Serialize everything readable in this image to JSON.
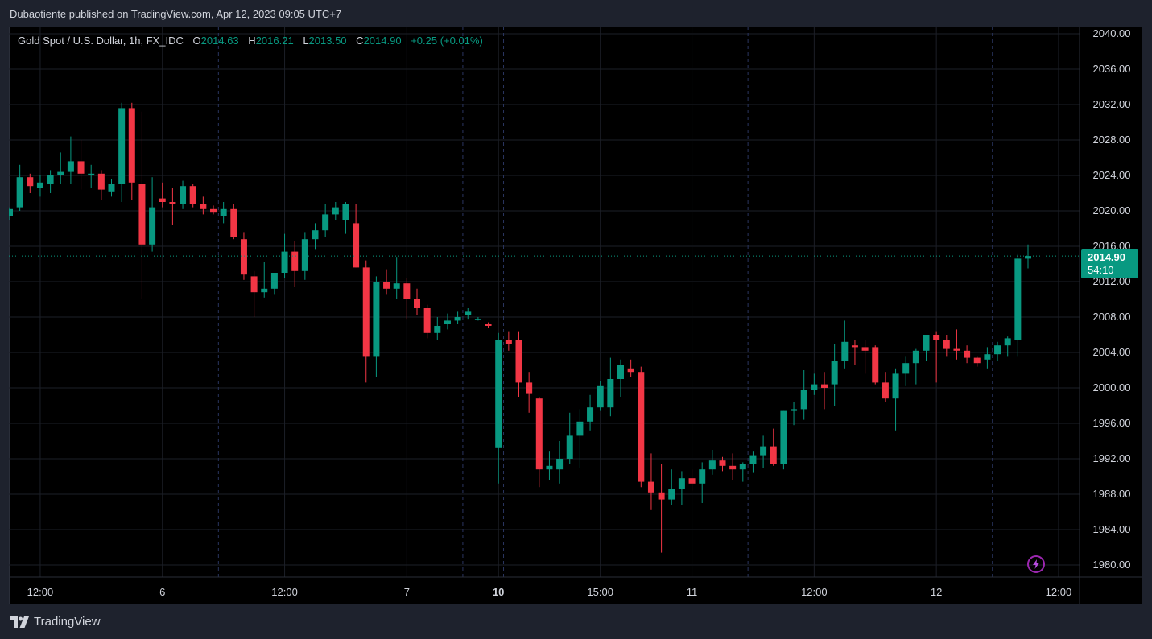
{
  "header": {
    "published": "Dubaotiente published on TradingView.com, Apr 12, 2023 09:05 UTC+7"
  },
  "legend": {
    "symbol": "Gold Spot / U.S. Dollar, 1h, FX_IDC",
    "o_label": "O",
    "o_value": "2014.63",
    "h_label": "H",
    "h_value": "2016.21",
    "l_label": "L",
    "l_value": "2013.50",
    "c_label": "C",
    "c_value": "2014.90",
    "change": "+0.25 (+0.01%)"
  },
  "price_tag": {
    "price": "2014.90",
    "countdown": "54:10"
  },
  "footer": {
    "brand": "TradingView"
  },
  "colors": {
    "up": "#089981",
    "down": "#f23645",
    "background": "#000000",
    "panel": "#1e222d",
    "grid": "#1c1f27",
    "accent": "#9c27b0"
  },
  "icons": [
    "tradingview-logo-icon",
    "lightning-bolt-icon"
  ],
  "chart_data": {
    "type": "candlestick",
    "title": "Gold Spot / U.S. Dollar, 1h, FX_IDC",
    "ylim": [
      1978,
      2042
    ],
    "y_ticks": [
      "2040.00",
      "2036.00",
      "2032.00",
      "2028.00",
      "2024.00",
      "2020.00",
      "2016.00",
      "2012.00",
      "2008.00",
      "2004.00",
      "2000.00",
      "1996.00",
      "1992.00",
      "1988.00",
      "1984.00",
      "1980.00"
    ],
    "x_ticks": [
      {
        "label": "12:00",
        "bar": 3,
        "bold": false
      },
      {
        "label": "6",
        "bar": 15,
        "bold": false
      },
      {
        "label": "12:00",
        "bar": 27,
        "bold": false
      },
      {
        "label": "7",
        "bar": 39,
        "bold": false
      },
      {
        "label": "10",
        "bar": 48,
        "bold": true
      },
      {
        "label": "15:00",
        "bar": 58,
        "bold": false
      },
      {
        "label": "11",
        "bar": 67,
        "bold": false
      },
      {
        "label": "12:00",
        "bar": 79,
        "bold": false
      },
      {
        "label": "12",
        "bar": 91,
        "bold": false
      },
      {
        "label": "12:00",
        "bar": 103,
        "bold": false
      }
    ],
    "session_breaks": [
      20.5,
      44.5,
      48.5,
      72.5,
      96.5
    ],
    "last_price": 2014.9,
    "candles": [
      [
        2019.4,
        2020.4,
        2019.0,
        2020.2
      ],
      [
        2020.4,
        2025.2,
        2020.0,
        2023.8
      ],
      [
        2023.8,
        2024.2,
        2022.0,
        2022.8
      ],
      [
        2022.6,
        2024.0,
        2021.6,
        2023.2
      ],
      [
        2023.0,
        2024.6,
        2022.0,
        2024.0
      ],
      [
        2024.0,
        2026.6,
        2023.0,
        2024.4
      ],
      [
        2024.4,
        2028.4,
        2023.0,
        2025.6
      ],
      [
        2025.6,
        2028.0,
        2022.4,
        2024.2
      ],
      [
        2024.0,
        2025.2,
        2022.6,
        2024.2
      ],
      [
        2024.2,
        2024.6,
        2021.2,
        2022.4
      ],
      [
        2022.2,
        2023.6,
        2021.6,
        2023.0
      ],
      [
        2023.0,
        2032.2,
        2021.0,
        2031.6
      ],
      [
        2031.6,
        2032.2,
        2021.2,
        2023.2
      ],
      [
        2023.0,
        2031.2,
        2010.0,
        2016.2
      ],
      [
        2016.2,
        2023.8,
        2015.4,
        2020.4
      ],
      [
        2021.4,
        2023.2,
        2020.4,
        2021.0
      ],
      [
        2021.0,
        2022.6,
        2018.4,
        2020.8
      ],
      [
        2020.8,
        2023.4,
        2020.2,
        2022.8
      ],
      [
        2022.8,
        2023.0,
        2020.4,
        2020.8
      ],
      [
        2020.8,
        2021.6,
        2019.6,
        2020.2
      ],
      [
        2020.2,
        2020.6,
        2019.6,
        2019.8
      ],
      [
        2019.4,
        2021.0,
        2018.6,
        2020.2
      ],
      [
        2020.2,
        2020.8,
        2016.8,
        2017.0
      ],
      [
        2016.8,
        2017.6,
        2012.2,
        2012.8
      ],
      [
        2012.6,
        2013.2,
        2008.0,
        2010.8
      ],
      [
        2010.8,
        2014.2,
        2010.2,
        2011.2
      ],
      [
        2011.2,
        2013.0,
        2010.6,
        2013.0
      ],
      [
        2013.0,
        2017.4,
        2012.4,
        2015.4
      ],
      [
        2015.4,
        2016.6,
        2011.4,
        2013.2
      ],
      [
        2013.2,
        2017.6,
        2012.2,
        2016.8
      ],
      [
        2016.8,
        2018.6,
        2015.6,
        2017.8
      ],
      [
        2017.8,
        2020.8,
        2017.0,
        2019.6
      ],
      [
        2019.6,
        2021.0,
        2019.0,
        2020.4
      ],
      [
        2019.0,
        2021.0,
        2017.4,
        2020.8
      ],
      [
        2018.6,
        2020.8,
        2013.6,
        2013.6
      ],
      [
        2013.6,
        2014.4,
        2000.6,
        2003.6
      ],
      [
        2003.6,
        2012.6,
        2001.2,
        2012.0
      ],
      [
        2012.0,
        2013.4,
        2010.6,
        2011.2
      ],
      [
        2011.2,
        2014.8,
        2010.0,
        2011.8
      ],
      [
        2011.8,
        2012.4,
        2007.8,
        2010.0
      ],
      [
        2010.0,
        2011.2,
        2008.2,
        2009.0
      ],
      [
        2009.0,
        2009.4,
        2005.6,
        2006.2
      ],
      [
        2006.2,
        2008.0,
        2005.4,
        2007.0
      ],
      [
        2007.2,
        2008.4,
        2006.6,
        2007.6
      ],
      [
        2007.6,
        2008.6,
        2007.2,
        2008.0
      ],
      [
        2008.2,
        2009.0,
        2007.8,
        2008.6
      ],
      [
        2007.8,
        2008.0,
        2007.6,
        2007.8
      ],
      [
        2007.2,
        2007.4,
        2006.8,
        2007.0
      ],
      [
        1993.2,
        2006.2,
        1989.2,
        2005.4
      ],
      [
        2005.4,
        2006.4,
        2004.2,
        2005.0
      ],
      [
        2005.4,
        2006.4,
        1999.0,
        2000.6
      ],
      [
        2000.6,
        2001.8,
        1997.2,
        1999.4
      ],
      [
        1998.8,
        1999.0,
        1988.8,
        1990.8
      ],
      [
        1990.8,
        1992.8,
        1989.6,
        1991.2
      ],
      [
        1990.8,
        1994.0,
        1989.2,
        1992.0
      ],
      [
        1992.0,
        1997.2,
        1991.4,
        1994.6
      ],
      [
        1994.6,
        1997.6,
        1991.0,
        1996.2
      ],
      [
        1996.2,
        1999.2,
        1995.2,
        1997.8
      ],
      [
        1997.8,
        2000.8,
        1997.4,
        2000.2
      ],
      [
        1997.8,
        2003.4,
        1996.8,
        2001.0
      ],
      [
        2001.0,
        2003.2,
        1999.0,
        2002.6
      ],
      [
        2002.2,
        2003.2,
        2001.2,
        2001.8
      ],
      [
        2001.8,
        2002.4,
        1988.8,
        1989.4
      ],
      [
        1989.4,
        1992.6,
        1986.2,
        1988.2
      ],
      [
        1988.2,
        1991.4,
        1981.4,
        1987.4
      ],
      [
        1987.4,
        1990.8,
        1986.8,
        1988.6
      ],
      [
        1988.6,
        1990.6,
        1986.8,
        1989.8
      ],
      [
        1989.8,
        1990.8,
        1988.4,
        1989.2
      ],
      [
        1989.2,
        1991.6,
        1987.0,
        1990.8
      ],
      [
        1990.8,
        1993.0,
        1990.2,
        1991.8
      ],
      [
        1991.8,
        1992.2,
        1990.6,
        1991.2
      ],
      [
        1991.2,
        1992.6,
        1989.6,
        1990.8
      ],
      [
        1990.8,
        1991.6,
        1989.4,
        1991.4
      ],
      [
        1991.4,
        1992.8,
        1990.4,
        1992.4
      ],
      [
        1992.4,
        1994.6,
        1991.0,
        1993.4
      ],
      [
        1993.4,
        1995.4,
        1991.2,
        1991.4
      ],
      [
        1991.4,
        1997.4,
        1990.8,
        1997.4
      ],
      [
        1997.4,
        1998.4,
        1995.8,
        1997.6
      ],
      [
        1997.6,
        2002.0,
        1996.4,
        1999.8
      ],
      [
        1999.8,
        2001.6,
        1999.2,
        2000.4
      ],
      [
        2000.4,
        2001.8,
        1997.6,
        2000.0
      ],
      [
        2000.4,
        2005.0,
        1998.0,
        2003.0
      ],
      [
        2003.0,
        2007.6,
        2002.2,
        2005.2
      ],
      [
        2004.8,
        2005.4,
        2002.6,
        2004.6
      ],
      [
        2004.6,
        2005.4,
        2001.6,
        2004.2
      ],
      [
        2004.6,
        2004.8,
        2000.4,
        2000.6
      ],
      [
        2000.6,
        2001.8,
        1998.4,
        1998.8
      ],
      [
        1998.8,
        2002.2,
        1995.2,
        2001.6
      ],
      [
        2001.6,
        2003.6,
        2000.2,
        2002.8
      ],
      [
        2002.8,
        2004.4,
        2000.4,
        2004.2
      ],
      [
        2004.2,
        2006.0,
        2003.0,
        2006.0
      ],
      [
        2006.0,
        2006.4,
        2000.6,
        2005.4
      ],
      [
        2005.4,
        2006.0,
        2003.6,
        2004.4
      ],
      [
        2004.4,
        2006.6,
        2003.2,
        2004.2
      ],
      [
        2004.2,
        2004.8,
        2002.8,
        2003.4
      ],
      [
        2003.4,
        2003.6,
        2002.4,
        2002.8
      ],
      [
        2003.2,
        2004.6,
        2002.2,
        2003.8
      ],
      [
        2003.8,
        2005.2,
        2003.0,
        2004.8
      ],
      [
        2004.8,
        2005.8,
        2003.6,
        2005.6
      ],
      [
        2005.4,
        2015.2,
        2003.6,
        2014.6
      ],
      [
        2014.6,
        2016.2,
        2013.5,
        2014.9
      ]
    ]
  }
}
